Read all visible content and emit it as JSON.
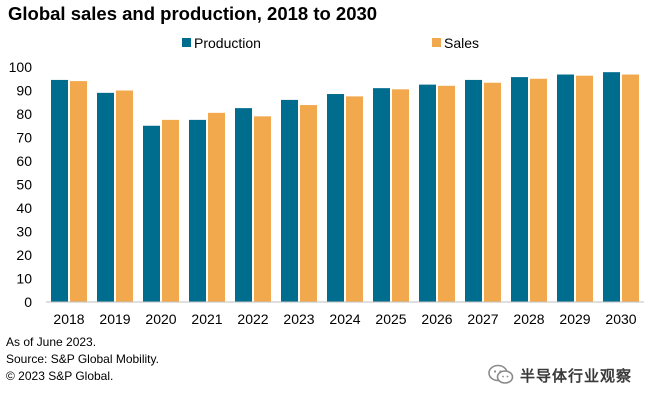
{
  "chart_data": {
    "type": "bar",
    "title": "Global sales and production, 2018 to 2030",
    "categories": [
      "2018",
      "2019",
      "2020",
      "2021",
      "2022",
      "2023",
      "2024",
      "2025",
      "2026",
      "2027",
      "2028",
      "2029",
      "2030"
    ],
    "series": [
      {
        "name": "Production",
        "color": "#006D8F",
        "values": [
          94.5,
          89,
          75,
          77.5,
          82.5,
          86,
          88.5,
          91,
          92.5,
          94.5,
          95.7,
          96.8,
          97.8
        ]
      },
      {
        "name": "Sales",
        "color": "#F2A94D",
        "values": [
          94,
          90,
          77.5,
          80.5,
          79,
          83.8,
          87.5,
          90.5,
          92,
          93.3,
          95,
          96.3,
          96.8
        ]
      }
    ],
    "xlabel": "",
    "ylabel": "",
    "ylim": [
      0,
      100
    ],
    "yticks": [
      0,
      10,
      20,
      30,
      40,
      50,
      60,
      70,
      80,
      90,
      100
    ],
    "grid": false,
    "legend_position": "top-center"
  },
  "footnotes": {
    "line1": "As of June 2023.",
    "line2": "Source: S&P Global Mobility.",
    "line3": "© 2023 S&P Global."
  },
  "watermark": {
    "text": "半导体行业观察"
  }
}
